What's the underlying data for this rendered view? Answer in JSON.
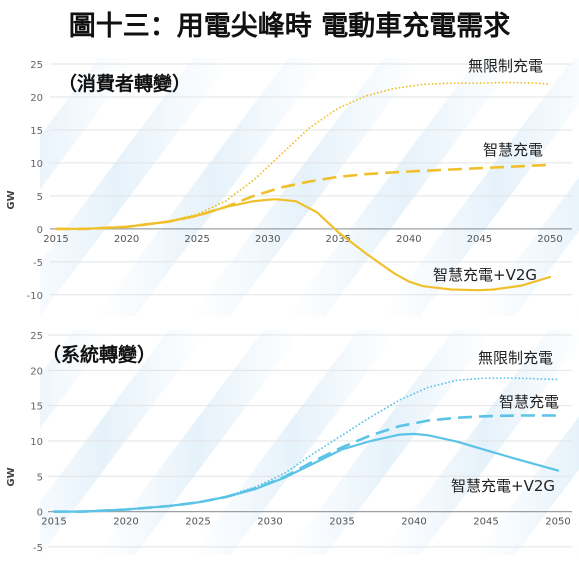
{
  "page": {
    "title": "圖十三：用電尖峰時 電動車充電需求"
  },
  "chart_data": [
    {
      "type": "line",
      "title": "（消費者轉變）",
      "ylabel": "GW",
      "xlim": [
        2015,
        2050
      ],
      "ylim": [
        -12,
        25
      ],
      "x_ticks": [
        2015,
        2020,
        2025,
        2030,
        2035,
        2040,
        2045,
        2050
      ],
      "y_ticks": [
        -10,
        -5,
        0,
        5,
        10,
        15,
        20,
        25
      ],
      "accent_color": "#f0c02c",
      "series": [
        {
          "name": "無限制充電",
          "style": "dotted",
          "x": [
            2015,
            2017,
            2020,
            2023,
            2025,
            2027,
            2029,
            2031,
            2033,
            2035,
            2037,
            2039,
            2041,
            2043,
            2045,
            2047,
            2049,
            2050
          ],
          "y": [
            0,
            0,
            0.4,
            1.2,
            2.2,
            4.2,
            7.4,
            11.4,
            15.4,
            18.3,
            20.2,
            21.3,
            21.9,
            22.1,
            22.1,
            22.2,
            22.1,
            21.9
          ]
        },
        {
          "name": "智慧充電",
          "style": "dashed",
          "x": [
            2015,
            2017,
            2020,
            2023,
            2025,
            2027,
            2029,
            2031,
            2033,
            2035,
            2037,
            2040,
            2043,
            2046,
            2050
          ],
          "y": [
            0,
            0,
            0.3,
            1.1,
            2.0,
            3.3,
            5.0,
            6.3,
            7.2,
            7.9,
            8.3,
            8.7,
            9.0,
            9.3,
            9.7
          ]
        },
        {
          "name": "智慧充電+V2G",
          "style": "solid",
          "x": [
            2015,
            2017,
            2020,
            2023,
            2025,
            2027,
            2029,
            2030.5,
            2032,
            2033.5,
            2035,
            2037,
            2039,
            2040,
            2041,
            2043,
            2045,
            2046,
            2048,
            2050
          ],
          "y": [
            0,
            0,
            0.3,
            1.1,
            2.0,
            3.3,
            4.2,
            4.5,
            4.2,
            2.5,
            -0.5,
            -3.8,
            -6.8,
            -8.0,
            -8.7,
            -9.2,
            -9.3,
            -9.2,
            -8.6,
            -7.3
          ]
        }
      ]
    },
    {
      "type": "line",
      "title": "（系統轉變）",
      "ylabel": "GW",
      "xlim": [
        2015,
        2050
      ],
      "ylim": [
        -6,
        25
      ],
      "x_ticks": [
        2015,
        2020,
        2025,
        2030,
        2035,
        2040,
        2045,
        2050
      ],
      "y_ticks": [
        -5,
        0,
        5,
        10,
        15,
        20,
        25
      ],
      "accent_color": "#5bc4e6",
      "series": [
        {
          "name": "無限制充電",
          "style": "dotted",
          "x": [
            2015,
            2017,
            2020,
            2023,
            2025,
            2027,
            2029,
            2031,
            2033,
            2035,
            2037,
            2039,
            2041,
            2043,
            2045,
            2047,
            2050
          ],
          "y": [
            0,
            0,
            0.3,
            0.8,
            1.3,
            2.2,
            3.5,
            5.4,
            8.2,
            10.8,
            13.4,
            15.8,
            17.6,
            18.6,
            18.9,
            18.9,
            18.7
          ]
        },
        {
          "name": "智慧充電",
          "style": "dashed",
          "x": [
            2015,
            2017,
            2020,
            2023,
            2025,
            2027,
            2029,
            2031,
            2033,
            2035,
            2037,
            2039,
            2041,
            2043,
            2045,
            2047,
            2050
          ],
          "y": [
            0,
            0,
            0.3,
            0.8,
            1.3,
            2.1,
            3.3,
            4.9,
            7.1,
            9.1,
            10.8,
            12.1,
            12.9,
            13.3,
            13.5,
            13.6,
            13.6
          ]
        },
        {
          "name": "智慧充電+V2G",
          "style": "solid",
          "x": [
            2015,
            2017,
            2020,
            2023,
            2025,
            2027,
            2029,
            2031,
            2033,
            2035,
            2037,
            2039,
            2040,
            2041,
            2043,
            2045,
            2047,
            2050
          ],
          "y": [
            0,
            0,
            0.3,
            0.8,
            1.3,
            2.1,
            3.2,
            4.8,
            6.8,
            8.8,
            10.0,
            10.9,
            11.0,
            10.8,
            9.9,
            8.7,
            7.5,
            5.8
          ]
        }
      ]
    }
  ]
}
